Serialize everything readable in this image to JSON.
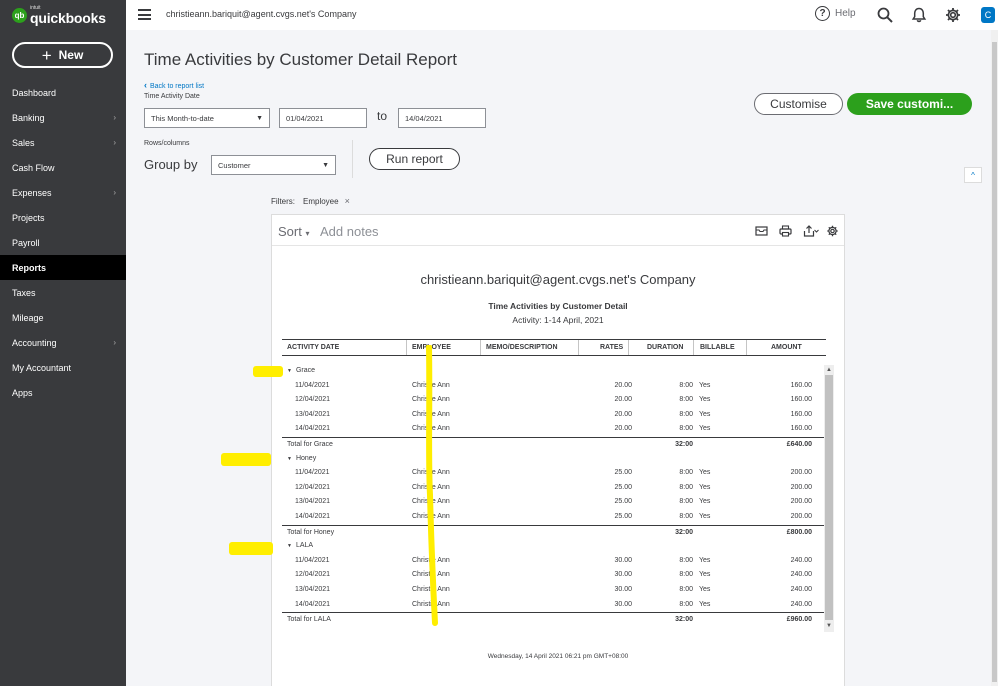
{
  "sidebar": {
    "logo_intuit": "intuit",
    "logo_text": "quickbooks",
    "logo_badge": "qb",
    "new_label": "New",
    "items": [
      {
        "label": "Dashboard",
        "chevron": false,
        "active": false
      },
      {
        "label": "Banking",
        "chevron": true,
        "active": false
      },
      {
        "label": "Sales",
        "chevron": true,
        "active": false
      },
      {
        "label": "Cash Flow",
        "chevron": false,
        "active": false
      },
      {
        "label": "Expenses",
        "chevron": true,
        "active": false
      },
      {
        "label": "Projects",
        "chevron": false,
        "active": false
      },
      {
        "label": "Payroll",
        "chevron": false,
        "active": false
      },
      {
        "label": "Reports",
        "chevron": false,
        "active": true
      },
      {
        "label": "Taxes",
        "chevron": false,
        "active": false
      },
      {
        "label": "Mileage",
        "chevron": false,
        "active": false
      },
      {
        "label": "Accounting",
        "chevron": true,
        "active": false
      },
      {
        "label": "My Accountant",
        "chevron": false,
        "active": false
      },
      {
        "label": "Apps",
        "chevron": false,
        "active": false
      }
    ]
  },
  "topbar": {
    "company": "christieann.bariquit@agent.cvgs.net's Company",
    "help_label": "Help",
    "help_icon": "?",
    "avatar_letter": "C"
  },
  "header": {
    "title": "Time Activities by Customer Detail Report",
    "back_link": "Back to report list",
    "back_icon": "‹",
    "date_label": "Time Activity Date",
    "date_range": "This Month-to-date",
    "date_from": "01/04/2021",
    "to_label": "to",
    "date_to": "14/04/2021",
    "rows_columns_label": "Rows/columns",
    "group_by_label": "Group by",
    "group_by_value": "Customer",
    "run_report": "Run report",
    "customise": "Customise",
    "save_customisation": "Save customi...",
    "collapse_icon": "^"
  },
  "filters": {
    "label": "Filters:",
    "chip": "Employee",
    "remove_icon": "×"
  },
  "toolbar": {
    "sort_label": "Sort",
    "add_notes": "Add notes"
  },
  "report": {
    "company": "christieann.bariquit@agent.cvgs.net's Company",
    "title": "Time Activities by Customer Detail",
    "subtitle": "Activity: 1-14 April, 2021",
    "columns": [
      "ACTIVITY DATE",
      "EMPLOYEE",
      "MEMO/DESCRIPTION",
      "RATES",
      "DURATION",
      "BILLABLE",
      "AMOUNT"
    ],
    "groups": [
      {
        "name": "Grace",
        "rows": [
          {
            "date": "11/04/2021",
            "employee": "Christie Ann",
            "memo": "",
            "rate": "20.00",
            "duration": "8:00",
            "billable": "Yes",
            "amount": "160.00"
          },
          {
            "date": "12/04/2021",
            "employee": "Christie Ann",
            "memo": "",
            "rate": "20.00",
            "duration": "8:00",
            "billable": "Yes",
            "amount": "160.00"
          },
          {
            "date": "13/04/2021",
            "employee": "Christie Ann",
            "memo": "",
            "rate": "20.00",
            "duration": "8:00",
            "billable": "Yes",
            "amount": "160.00"
          },
          {
            "date": "14/04/2021",
            "employee": "Christie Ann",
            "memo": "",
            "rate": "20.00",
            "duration": "8:00",
            "billable": "Yes",
            "amount": "160.00"
          }
        ],
        "total_label": "Total for Grace",
        "total_duration": "32:00",
        "total_amount": "£640.00"
      },
      {
        "name": "Honey",
        "rows": [
          {
            "date": "11/04/2021",
            "employee": "Christie Ann",
            "memo": "",
            "rate": "25.00",
            "duration": "8:00",
            "billable": "Yes",
            "amount": "200.00"
          },
          {
            "date": "12/04/2021",
            "employee": "Christie Ann",
            "memo": "",
            "rate": "25.00",
            "duration": "8:00",
            "billable": "Yes",
            "amount": "200.00"
          },
          {
            "date": "13/04/2021",
            "employee": "Christie Ann",
            "memo": "",
            "rate": "25.00",
            "duration": "8:00",
            "billable": "Yes",
            "amount": "200.00"
          },
          {
            "date": "14/04/2021",
            "employee": "Christie Ann",
            "memo": "",
            "rate": "25.00",
            "duration": "8:00",
            "billable": "Yes",
            "amount": "200.00"
          }
        ],
        "total_label": "Total for Honey",
        "total_duration": "32:00",
        "total_amount": "£800.00"
      },
      {
        "name": "LALA",
        "rows": [
          {
            "date": "11/04/2021",
            "employee": "Christie Ann",
            "memo": "",
            "rate": "30.00",
            "duration": "8:00",
            "billable": "Yes",
            "amount": "240.00"
          },
          {
            "date": "12/04/2021",
            "employee": "Christie Ann",
            "memo": "",
            "rate": "30.00",
            "duration": "8:00",
            "billable": "Yes",
            "amount": "240.00"
          },
          {
            "date": "13/04/2021",
            "employee": "Christie Ann",
            "memo": "",
            "rate": "30.00",
            "duration": "8:00",
            "billable": "Yes",
            "amount": "240.00"
          },
          {
            "date": "14/04/2021",
            "employee": "Christie Ann",
            "memo": "",
            "rate": "30.00",
            "duration": "8:00",
            "billable": "Yes",
            "amount": "240.00"
          }
        ],
        "total_label": "Total for LALA",
        "total_duration": "32:00",
        "total_amount": "£960.00"
      }
    ],
    "timestamp": "Wednesday, 14 April 2021  06:21 pm GMT+08:00"
  },
  "colors": {
    "sidebar_bg": "#393a3d",
    "brand_green": "#2ca01c",
    "link_blue": "#0077c5",
    "highlight_yellow": "#ffee00"
  }
}
